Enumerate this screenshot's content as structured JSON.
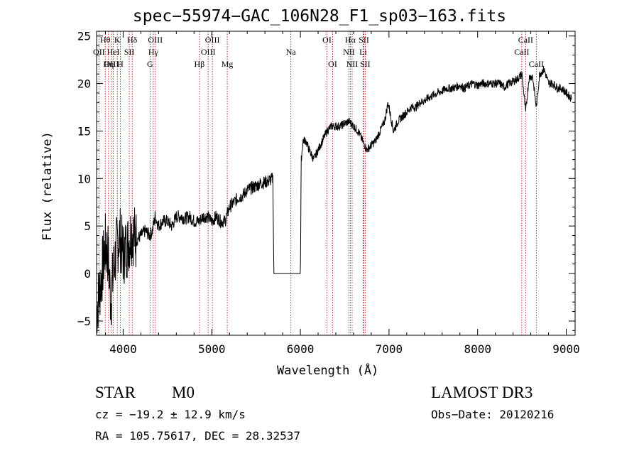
{
  "chart_data": {
    "type": "line",
    "title": "spec−55974−GAC_106N28_F1_sp03−163.fits",
    "xlabel": "Wavelength (Å)",
    "ylabel": "Flux (relative)",
    "xlim": [
      3700,
      9100
    ],
    "ylim": [
      -6.5,
      25.5
    ],
    "xticks": [
      4000,
      5000,
      6000,
      7000,
      8000,
      9000
    ],
    "yticks": [
      -5,
      0,
      5,
      10,
      15,
      20,
      25
    ],
    "series": [
      {
        "name": "flux",
        "x": [
          3700,
          3760,
          3800,
          3830,
          3860,
          3900,
          3930,
          3960,
          4000,
          4050,
          4100,
          4150,
          4200,
          4250,
          4300,
          4330,
          4360,
          4400,
          4450,
          4500,
          4550,
          4600,
          4650,
          4700,
          4750,
          4800,
          4860,
          4900,
          4950,
          5000,
          5050,
          5100,
          5150,
          5200,
          5250,
          5300,
          5350,
          5400,
          5450,
          5500,
          5550,
          5600,
          5650,
          5690,
          5700,
          6000,
          6010,
          6030,
          6060,
          6100,
          6150,
          6200,
          6250,
          6300,
          6350,
          6400,
          6450,
          6500,
          6550,
          6600,
          6650,
          6700,
          6750,
          6800,
          6850,
          6900,
          6950,
          6990,
          7050,
          7100,
          7150,
          7200,
          7250,
          7300,
          7350,
          7400,
          7450,
          7500,
          7550,
          7600,
          7650,
          7700,
          7750,
          7800,
          7850,
          7900,
          7950,
          8000,
          8050,
          8100,
          8150,
          8200,
          8250,
          8300,
          8350,
          8400,
          8450,
          8500,
          8542,
          8580,
          8620,
          8662,
          8700,
          8750,
          8800,
          8850,
          8900,
          8950,
          9000,
          9050
        ],
        "y": [
          -4,
          0,
          3,
          2,
          -3,
          1,
          3,
          4,
          2,
          3,
          4.5,
          3.5,
          4,
          4.5,
          4,
          4.5,
          6,
          5,
          5.5,
          5.5,
          5,
          6,
          6,
          5.8,
          6,
          5.5,
          5.5,
          6,
          6,
          5.5,
          6,
          5.5,
          5.5,
          7,
          7.5,
          8,
          8.2,
          8.8,
          9,
          9.2,
          9.5,
          9.6,
          9.8,
          10,
          0,
          0,
          12,
          14,
          14,
          13,
          12,
          13,
          14,
          15,
          15.5,
          15.5,
          15.5,
          15.8,
          16,
          15.5,
          15,
          14,
          13,
          13.5,
          14,
          15,
          16,
          18,
          15,
          16,
          16.5,
          17,
          17.5,
          17.5,
          18,
          18.2,
          18.5,
          18.8,
          19,
          19.2,
          19.5,
          19.5,
          19.6,
          19.8,
          19.5,
          19.8,
          20,
          19.8,
          20,
          20,
          20,
          20,
          20,
          19.6,
          20,
          20.2,
          20.5,
          21,
          17,
          20.6,
          20.8,
          17.5,
          21,
          21.5,
          20,
          20,
          19.5,
          19.5,
          19,
          18.5
        ]
      }
    ],
    "lines": [
      {
        "label": "Hθ",
        "x": 3798,
        "row": 0
      },
      {
        "label": "OII",
        "x": 3727,
        "row": 1
      },
      {
        "label": "OIII",
        "x": 3869,
        "row": 2
      },
      {
        "label": "K",
        "x": 3934,
        "row": 0
      },
      {
        "label": "HeI",
        "x": 3889,
        "row": 1
      },
      {
        "label": "Hη",
        "x": 3835,
        "row": 2
      },
      {
        "label": "SII",
        "x": 4069,
        "row": 1
      },
      {
        "label": "H",
        "x": 3968,
        "row": 2
      },
      {
        "label": "Hδ",
        "x": 4102,
        "row": 0
      },
      {
        "label": "OIII",
        "x": 4363,
        "row": 0
      },
      {
        "label": "Hγ",
        "x": 4340,
        "row": 1
      },
      {
        "label": "G",
        "x": 4304,
        "row": 2
      },
      {
        "label": "Hβ",
        "x": 4861,
        "row": 2
      },
      {
        "label": "OIII",
        "x": 5007,
        "row": 0
      },
      {
        "label": "OIII",
        "x": 4959,
        "row": 1
      },
      {
        "label": "Mg",
        "x": 5175,
        "row": 2
      },
      {
        "label": "Na",
        "x": 5893,
        "row": 1
      },
      {
        "label": "OI",
        "x": 6300,
        "row": 0
      },
      {
        "label": "OI",
        "x": 6364,
        "row": 2
      },
      {
        "label": "Hα",
        "x": 6563,
        "row": 0
      },
      {
        "label": "NII",
        "x": 6548,
        "row": 1
      },
      {
        "label": "NII",
        "x": 6584,
        "row": 2
      },
      {
        "label": "SII",
        "x": 6717,
        "row": 0
      },
      {
        "label": "Li",
        "x": 6708,
        "row": 1
      },
      {
        "label": "SII",
        "x": 6731,
        "row": 2
      },
      {
        "label": "CaII",
        "x": 8542,
        "row": 0
      },
      {
        "label": "CaII",
        "x": 8498,
        "row": 1
      },
      {
        "label": "CaII",
        "x": 8662,
        "row": 2
      }
    ]
  },
  "info": {
    "class": "STAR",
    "subclass": "M0",
    "survey": "LAMOST DR3",
    "cz": "cz = −19.2 ± 12.9 km/s",
    "obs_date": "Obs−Date: 20120216",
    "radec": "RA = 105.75617, DEC =  28.32537"
  },
  "colors": {
    "line_marker": "#aa0000",
    "spectrum": "#000000"
  }
}
